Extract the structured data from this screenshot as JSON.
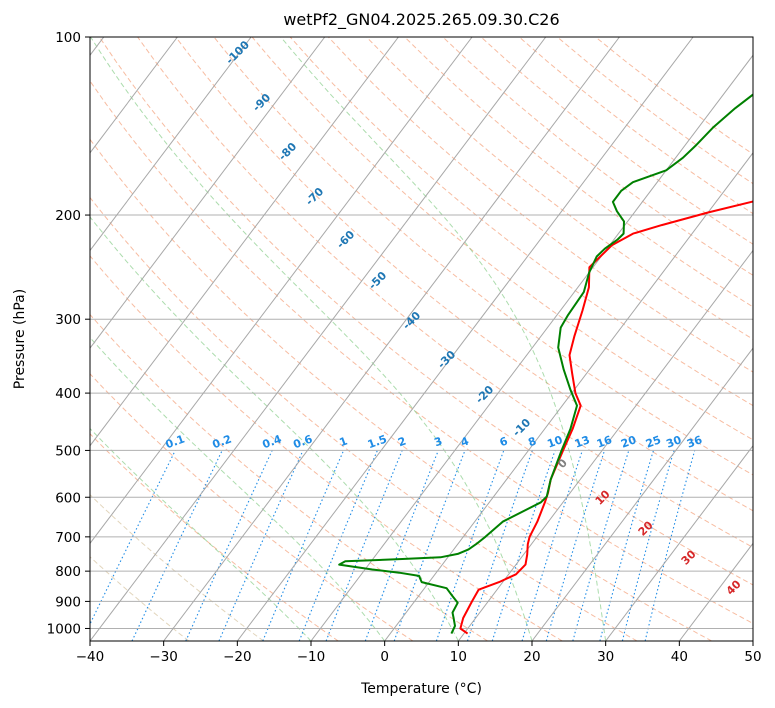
{
  "chart_data": {
    "type": "line",
    "title": "wetPf2_GN04.2025.265.09.30.C26",
    "xlabel": "Temperature (°C)",
    "ylabel": "Pressure (hPa)",
    "xlim": [
      -40,
      50
    ],
    "ylim": [
      1050,
      100
    ],
    "y_scale": "log",
    "grid": true,
    "x_ticks": [
      -40,
      -30,
      -20,
      -10,
      0,
      10,
      20,
      30,
      40,
      50
    ],
    "y_ticks": [
      100,
      200,
      300,
      400,
      500,
      600,
      700,
      800,
      900,
      1000
    ],
    "colors": {
      "temperature": "#ff0000",
      "dewpoint": "#008000",
      "dry_adiabats": "#f4a582",
      "moist_adiabats": "#74c476",
      "mixing_ratio": "#1f8ce6",
      "isotherms": "#999999",
      "label_blue": "#1f77b4",
      "label_red": "#d62728",
      "label_gray": "#808080"
    },
    "series": [
      {
        "role": "temperature",
        "points": [
          [
            10.5,
            1020
          ],
          [
            9,
            1000
          ],
          [
            8.3,
            960
          ],
          [
            7.8,
            900
          ],
          [
            7.5,
            860
          ],
          [
            9.5,
            835
          ],
          [
            11,
            810
          ],
          [
            11.3,
            780
          ],
          [
            10.5,
            750
          ],
          [
            9.5,
            720
          ],
          [
            9,
            700
          ],
          [
            8.5,
            660
          ],
          [
            7.5,
            610
          ],
          [
            7,
            590
          ],
          [
            6,
            560
          ],
          [
            4.7,
            500
          ],
          [
            3.8,
            460
          ],
          [
            2.5,
            420
          ],
          [
            0.5,
            400
          ],
          [
            -2,
            370
          ],
          [
            -4.2,
            345
          ],
          [
            -5.5,
            320
          ],
          [
            -7,
            290
          ],
          [
            -8.5,
            265
          ],
          [
            -10.5,
            245
          ],
          [
            -9.7,
            225
          ],
          [
            -8,
            215
          ],
          [
            -5,
            208
          ],
          [
            0,
            198
          ],
          [
            6,
            188
          ],
          [
            8.5,
            180
          ],
          [
            9.5,
            165
          ],
          [
            10,
            158
          ],
          [
            11,
            152
          ],
          [
            14,
            144
          ],
          [
            19,
            133
          ],
          [
            23,
            122
          ],
          [
            25.5,
            115
          ],
          [
            27,
            110
          ],
          [
            27.5,
            105
          ],
          [
            28,
            100
          ]
        ]
      },
      {
        "role": "dewpoint",
        "points": [
          [
            8.3,
            1020
          ],
          [
            8,
            990
          ],
          [
            7,
            960
          ],
          [
            6.3,
            940
          ],
          [
            6,
            905
          ],
          [
            4.5,
            880
          ],
          [
            3,
            855
          ],
          [
            -1,
            835
          ],
          [
            -2,
            815
          ],
          [
            -5,
            805
          ],
          [
            -9,
            795
          ],
          [
            -14,
            780
          ],
          [
            -13.5,
            770
          ],
          [
            -6,
            763
          ],
          [
            -1,
            758
          ],
          [
            1,
            748
          ],
          [
            2,
            735
          ],
          [
            2.5,
            720
          ],
          [
            3,
            700
          ],
          [
            3.8,
            660
          ],
          [
            7,
            612
          ],
          [
            7.2,
            598
          ],
          [
            6,
            560
          ],
          [
            4.5,
            500
          ],
          [
            3.5,
            460
          ],
          [
            2,
            420
          ],
          [
            -0.5,
            395
          ],
          [
            -3.5,
            365
          ],
          [
            -6.5,
            335
          ],
          [
            -8.2,
            310
          ],
          [
            -8.5,
            295
          ],
          [
            -8.7,
            270
          ],
          [
            -10,
            250
          ],
          [
            -10.6,
            235
          ],
          [
            -10.3,
            228
          ],
          [
            -9.5,
            220
          ],
          [
            -9.3,
            215
          ],
          [
            -10.5,
            205
          ],
          [
            -12.5,
            197
          ],
          [
            -14,
            190
          ],
          [
            -14,
            182
          ],
          [
            -13.3,
            176
          ],
          [
            -10,
            168
          ],
          [
            -9,
            160
          ],
          [
            -8.5,
            152
          ],
          [
            -8,
            142
          ],
          [
            -7,
            132
          ],
          [
            -5.5,
            122
          ],
          [
            -4,
            115
          ],
          [
            -2,
            108
          ],
          [
            1,
            100
          ]
        ]
      }
    ],
    "annotations": {
      "dry_adiabat_labels": [
        "-100",
        "-90",
        "-80",
        "-70",
        "-60",
        "-50",
        "-40",
        "-30",
        "-20",
        "-10",
        "0",
        "10",
        "20",
        "30",
        "40"
      ],
      "mixing_ratio_labels": [
        "0.1",
        "0.2",
        "0.4",
        "0.6",
        "1",
        "1.5",
        "2",
        "3",
        "4",
        "6",
        "8",
        "10",
        "13",
        "16",
        "20",
        "25",
        "30",
        "36"
      ]
    }
  }
}
